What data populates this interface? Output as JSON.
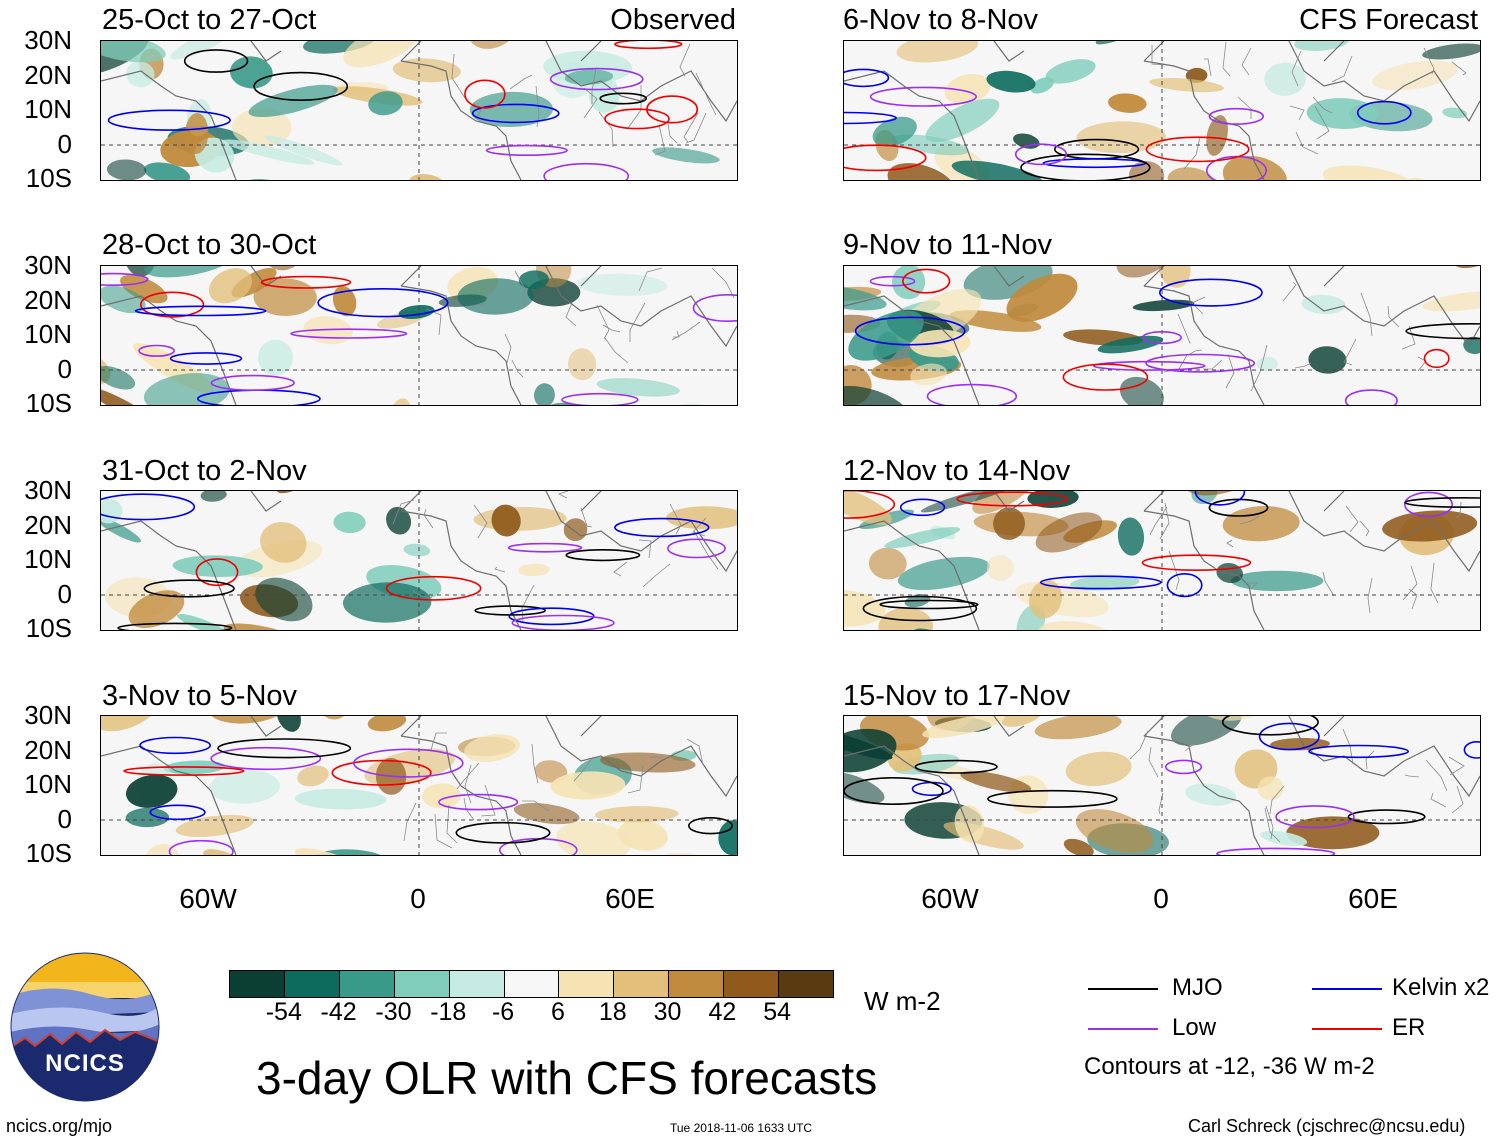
{
  "title": "3-day OLR with CFS forecasts",
  "headers": {
    "observed": "Observed",
    "forecast": "CFS Forecast"
  },
  "observed_panels": [
    {
      "label": "25-Oct to 27-Oct"
    },
    {
      "label": "28-Oct to 30-Oct"
    },
    {
      "label": "31-Oct to 2-Nov"
    },
    {
      "label": "3-Nov to 5-Nov"
    }
  ],
  "forecast_panels": [
    {
      "label": "6-Nov to 8-Nov"
    },
    {
      "label": "9-Nov to 11-Nov"
    },
    {
      "label": "12-Nov to 14-Nov"
    },
    {
      "label": "15-Nov to 17-Nov"
    }
  ],
  "lat_labels": [
    "30N",
    "20N",
    "10N",
    "0",
    "10S"
  ],
  "lon_labels": [
    "60W",
    "0",
    "60E"
  ],
  "colorbar": {
    "unit": "W m-2",
    "ticks": [
      "-54",
      "-42",
      "-30",
      "-18",
      "-6",
      "6",
      "18",
      "30",
      "42",
      "54"
    ],
    "colors": [
      "#0b3f33",
      "#0d6b5e",
      "#3a9a8a",
      "#7fcdbb",
      "#c6ebe2",
      "#f7f7f7",
      "#f6e3b4",
      "#e2bf7a",
      "#c08a3c",
      "#8f5a1c",
      "#5a3a10"
    ]
  },
  "legend": {
    "items": [
      {
        "name": "MJO",
        "color": "#000000"
      },
      {
        "name": "Kelvin x2",
        "color": "#0000ee"
      },
      {
        "name": "Low",
        "color": "#9a30f0"
      },
      {
        "name": "ER",
        "color": "#ee0000"
      }
    ],
    "note": "Contours at -12, -36 W m-2"
  },
  "logo": {
    "text": "NCICS"
  },
  "footer": {
    "left": "ncics.org/mjo",
    "center": "Tue 2018-11-06 1633 UTC",
    "right": "Carl Schreck (cjschrec@ncsu.edu)"
  }
}
